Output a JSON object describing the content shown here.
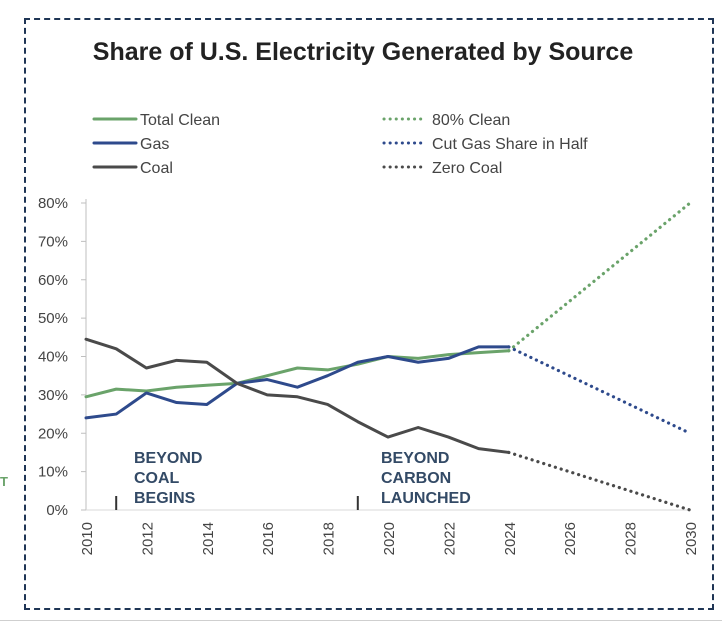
{
  "colors": {
    "clean": "#6aa36a",
    "gas": "#2e4a8c",
    "coal": "#4a4a4a",
    "frame": "#1f3555",
    "annotation": "#334a66"
  },
  "stray_text": "T",
  "chart_data": {
    "type": "line",
    "title": "Share of U.S. Electricity Generated by Source",
    "xlabel": "",
    "ylabel": "",
    "xlim": [
      2010,
      2030
    ],
    "ylim": [
      0,
      80
    ],
    "x_ticks": [
      "2010",
      "2012",
      "2014",
      "2016",
      "2018",
      "2020",
      "2022",
      "2024",
      "2026",
      "2028",
      "2030"
    ],
    "y_ticks": [
      "0%",
      "10%",
      "20%",
      "30%",
      "40%",
      "50%",
      "60%",
      "70%",
      "80%"
    ],
    "legend_position": "top",
    "series": [
      {
        "name": "Total Clean",
        "style": "solid",
        "color": "#6aa36a",
        "x": [
          2010,
          2011,
          2012,
          2013,
          2014,
          2015,
          2016,
          2017,
          2018,
          2019,
          2020,
          2021,
          2022,
          2023,
          2024
        ],
        "y": [
          29.5,
          31.5,
          31,
          32,
          32.5,
          33,
          35,
          37,
          36.5,
          38,
          40,
          39.5,
          40.5,
          41,
          41.5
        ]
      },
      {
        "name": "Gas",
        "style": "solid",
        "color": "#2e4a8c",
        "x": [
          2010,
          2011,
          2012,
          2013,
          2014,
          2015,
          2016,
          2017,
          2018,
          2019,
          2020,
          2021,
          2022,
          2023,
          2024
        ],
        "y": [
          24,
          25,
          30.5,
          28,
          27.5,
          33,
          34,
          32,
          35,
          38.5,
          40,
          38.5,
          39.5,
          42.5,
          42.5
        ]
      },
      {
        "name": "Coal",
        "style": "solid",
        "color": "#4a4a4a",
        "x": [
          2010,
          2011,
          2012,
          2013,
          2014,
          2015,
          2016,
          2017,
          2018,
          2019,
          2020,
          2021,
          2022,
          2023,
          2024
        ],
        "y": [
          44.5,
          42,
          37,
          39,
          38.5,
          33,
          30,
          29.5,
          27.5,
          23,
          19,
          21.5,
          19,
          16,
          15
        ]
      },
      {
        "name": "80% Clean",
        "style": "dotted",
        "color": "#6aa36a",
        "x": [
          2024,
          2030
        ],
        "y": [
          41.5,
          80
        ]
      },
      {
        "name": "Cut Gas Share in Half",
        "style": "dotted",
        "color": "#2e4a8c",
        "x": [
          2024,
          2030
        ],
        "y": [
          42.5,
          20
        ]
      },
      {
        "name": "Zero Coal",
        "style": "dotted",
        "color": "#4a4a4a",
        "x": [
          2024,
          2030
        ],
        "y": [
          15,
          0
        ]
      }
    ],
    "annotations": [
      {
        "lines": [
          "BEYOND",
          "COAL",
          "BEGINS"
        ],
        "x": 2011
      },
      {
        "lines": [
          "BEYOND",
          "CARBON",
          "LAUNCHED"
        ],
        "x": 2019
      }
    ]
  }
}
